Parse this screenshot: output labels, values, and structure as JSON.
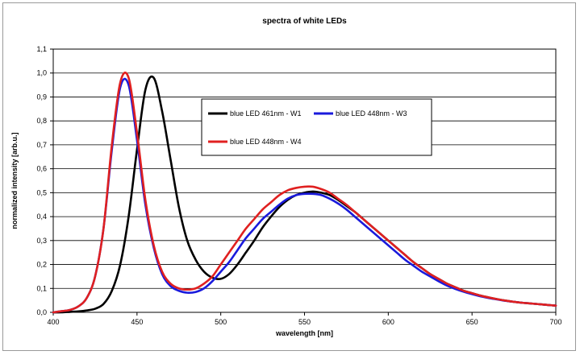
{
  "chart_data": {
    "type": "line",
    "title": "spectra of white LEDs",
    "xlabel": "wavelength [nm]",
    "ylabel": "normalized intensity [arb.u.]",
    "xlim": [
      400,
      700
    ],
    "ylim": [
      0.0,
      1.1
    ],
    "x_ticks": [
      400,
      450,
      500,
      550,
      600,
      650,
      700
    ],
    "y_ticks": [
      0.0,
      0.1,
      0.2,
      0.3,
      0.4,
      0.5,
      0.6,
      0.7,
      0.8,
      0.9,
      1.0,
      1.1
    ],
    "y_tick_labels": [
      "0,0",
      "0,1",
      "0,2",
      "0,3",
      "0,4",
      "0,5",
      "0,6",
      "0,7",
      "0,8",
      "0,9",
      "1,0",
      "1,1"
    ],
    "grid": "horizontal",
    "legend_position": "upper-center",
    "x": [
      400,
      405,
      410,
      415,
      420,
      425,
      430,
      435,
      440,
      445,
      450,
      455,
      460,
      465,
      470,
      475,
      480,
      485,
      490,
      495,
      500,
      505,
      510,
      515,
      520,
      525,
      530,
      535,
      540,
      545,
      550,
      555,
      560,
      565,
      570,
      575,
      580,
      585,
      590,
      595,
      600,
      605,
      610,
      615,
      620,
      625,
      630,
      635,
      640,
      645,
      650,
      655,
      660,
      665,
      670,
      675,
      680,
      685,
      690,
      695,
      700
    ],
    "series": [
      {
        "name": "blue LED 461nm - W1",
        "color": "#000000",
        "values": [
          0.0,
          0.0,
          0.002,
          0.004,
          0.008,
          0.015,
          0.035,
          0.09,
          0.2,
          0.4,
          0.68,
          0.93,
          0.98,
          0.84,
          0.64,
          0.44,
          0.3,
          0.22,
          0.17,
          0.145,
          0.14,
          0.16,
          0.2,
          0.25,
          0.3,
          0.355,
          0.4,
          0.44,
          0.47,
          0.49,
          0.5,
          0.505,
          0.5,
          0.49,
          0.47,
          0.445,
          0.42,
          0.39,
          0.36,
          0.33,
          0.3,
          0.27,
          0.24,
          0.21,
          0.185,
          0.16,
          0.14,
          0.12,
          0.105,
          0.09,
          0.08,
          0.07,
          0.062,
          0.055,
          0.049,
          0.044,
          0.04,
          0.037,
          0.034,
          0.031,
          0.028
        ]
      },
      {
        "name": "blue LED 448nm - W3",
        "color": "#1a1adc",
        "values": [
          0.0,
          0.005,
          0.01,
          0.025,
          0.06,
          0.15,
          0.35,
          0.68,
          0.94,
          0.95,
          0.72,
          0.45,
          0.27,
          0.16,
          0.11,
          0.09,
          0.082,
          0.085,
          0.1,
          0.13,
          0.17,
          0.21,
          0.26,
          0.31,
          0.35,
          0.39,
          0.42,
          0.45,
          0.475,
          0.49,
          0.495,
          0.495,
          0.49,
          0.475,
          0.455,
          0.43,
          0.4,
          0.37,
          0.34,
          0.31,
          0.28,
          0.25,
          0.22,
          0.195,
          0.17,
          0.15,
          0.13,
          0.112,
          0.098,
          0.086,
          0.076,
          0.067,
          0.06,
          0.054,
          0.048,
          0.044,
          0.04,
          0.037,
          0.034,
          0.031,
          0.028
        ]
      },
      {
        "name": "blue LED 448nm - W4",
        "color": "#e02020",
        "values": [
          0.0,
          0.005,
          0.01,
          0.025,
          0.06,
          0.15,
          0.35,
          0.7,
          0.96,
          0.98,
          0.75,
          0.47,
          0.28,
          0.17,
          0.12,
          0.1,
          0.095,
          0.1,
          0.12,
          0.15,
          0.2,
          0.25,
          0.3,
          0.35,
          0.39,
          0.43,
          0.46,
          0.49,
          0.51,
          0.52,
          0.525,
          0.525,
          0.515,
          0.5,
          0.475,
          0.45,
          0.42,
          0.39,
          0.36,
          0.33,
          0.3,
          0.27,
          0.24,
          0.21,
          0.185,
          0.16,
          0.14,
          0.12,
          0.105,
          0.09,
          0.08,
          0.07,
          0.062,
          0.055,
          0.049,
          0.044,
          0.04,
          0.037,
          0.034,
          0.031,
          0.028
        ]
      }
    ]
  }
}
